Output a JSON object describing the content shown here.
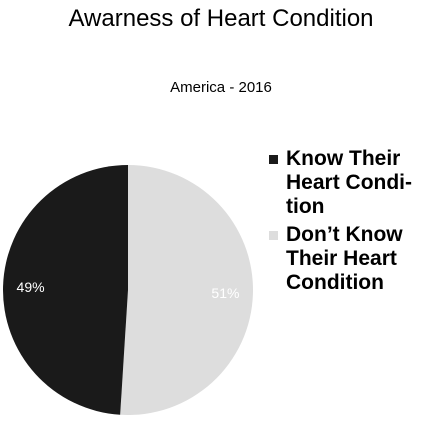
{
  "chart_data": {
    "type": "pie",
    "title": "Awarness of Heart Condition",
    "subtitle": "America - 2016",
    "categories": [
      "Know Their Heart Condition",
      "Don't Know Their Heart Condition"
    ],
    "values": [
      49,
      51
    ],
    "labels": [
      "49%",
      "51%"
    ],
    "colors": [
      "#1a1a1a",
      "#dddddd"
    ],
    "legend_labels": [
      "Know Their Heart Condi-tion",
      "Don’t Know Their Heart Condition"
    ],
    "legend_position": "right"
  }
}
